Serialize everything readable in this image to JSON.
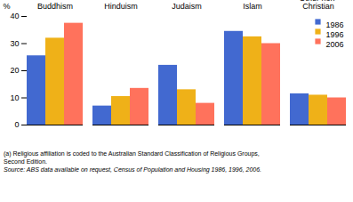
{
  "chart_data": {
    "type": "bar",
    "categories": [
      "Buddhism",
      "Hinduism",
      "Judaism",
      "Islam",
      "Other non-Christian"
    ],
    "series": [
      {
        "name": "1986",
        "values": [
          25.5,
          7.0,
          22.0,
          34.5,
          11.5
        ]
      },
      {
        "name": "1996",
        "values": [
          32.0,
          10.5,
          13.0,
          32.5,
          11.0
        ]
      },
      {
        "name": "2006",
        "values": [
          37.5,
          13.5,
          8.0,
          30.0,
          10.0
        ]
      }
    ],
    "ylabel": "%",
    "ylim": [
      0,
      40
    ],
    "yticks": [
      0,
      10,
      20,
      30,
      40
    ],
    "grid": false,
    "legend": "upper right",
    "annotations": [
      "(a) Religious affiliation is coded to the Australian Standard Classification of Religious Groups,",
      "Second Edition.",
      "Source: ABS data available on request, Census of Population and Housing 1986, 1996, 2006."
    ]
  }
}
